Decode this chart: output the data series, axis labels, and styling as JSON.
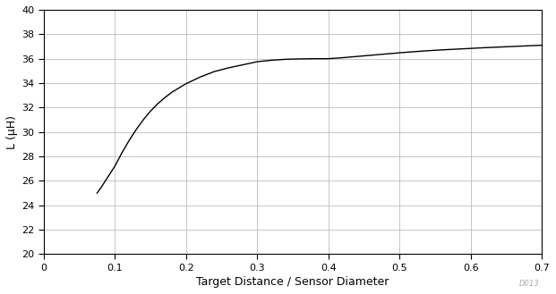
{
  "xlabel": "Target Distance / Sensor Diameter",
  "ylabel": "L (μH)",
  "xlim": [
    0,
    0.7
  ],
  "ylim": [
    20,
    40
  ],
  "xticks": [
    0,
    0.1,
    0.2,
    0.3,
    0.4,
    0.5,
    0.6,
    0.7
  ],
  "xtick_labels": [
    "0",
    "0.1",
    "0.2",
    "0.3",
    "0.4",
    "0.5",
    "0.6",
    "0.7"
  ],
  "yticks": [
    20,
    22,
    24,
    26,
    28,
    30,
    32,
    34,
    36,
    38,
    40
  ],
  "line_color": "#000000",
  "background_color": "#ffffff",
  "grid_color": "#bbbbbb",
  "watermark": "D013",
  "curve_x": [
    0.075,
    0.08,
    0.09,
    0.1,
    0.11,
    0.12,
    0.13,
    0.14,
    0.15,
    0.16,
    0.17,
    0.18,
    0.19,
    0.2,
    0.22,
    0.24,
    0.26,
    0.28,
    0.3,
    0.32,
    0.34,
    0.36,
    0.38,
    0.4,
    0.42,
    0.44,
    0.46,
    0.48,
    0.5,
    0.52,
    0.54,
    0.56,
    0.58,
    0.6,
    0.62,
    0.64,
    0.66,
    0.68,
    0.7
  ],
  "curve_y": [
    25.0,
    25.4,
    26.3,
    27.2,
    28.3,
    29.3,
    30.2,
    31.0,
    31.7,
    32.3,
    32.8,
    33.25,
    33.6,
    33.95,
    34.5,
    34.95,
    35.25,
    35.5,
    35.75,
    35.87,
    35.95,
    35.98,
    36.0,
    36.0,
    36.08,
    36.18,
    36.28,
    36.38,
    36.48,
    36.57,
    36.65,
    36.72,
    36.78,
    36.84,
    36.9,
    36.95,
    37.0,
    37.05,
    37.1
  ]
}
